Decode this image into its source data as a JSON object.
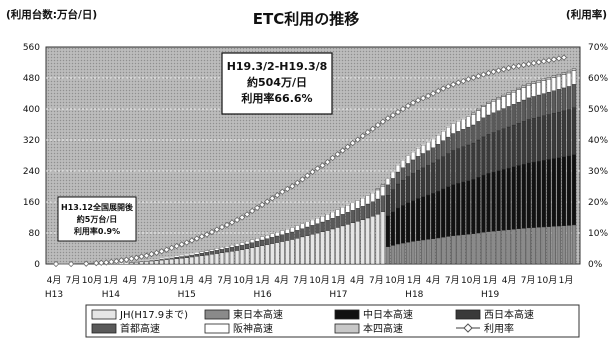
{
  "chart_data": {
    "type": "bar",
    "title": "ETC利用の推移",
    "ylabel_left": "(利用台数:万台/日)",
    "ylabel_right": "(利用率)",
    "y_left": {
      "min": 0,
      "max": 560,
      "ticks": [
        "560",
        "480",
        "400",
        "320",
        "240",
        "160",
        "80",
        "0"
      ]
    },
    "y_right": {
      "min": 0,
      "max": 70,
      "ticks": [
        "70%",
        "60%",
        "50%",
        "40%",
        "30%",
        "20%",
        "10%",
        "0%"
      ]
    },
    "x_month_labels": [
      "4月",
      "7月",
      "10月",
      "1月",
      "4月",
      "7月",
      "10月",
      "1月",
      "4月",
      "7月",
      "10月",
      "1月",
      "4月",
      "7月",
      "10月",
      "1月",
      "4月",
      "7月",
      "10月",
      "1月",
      "4月",
      "7月",
      "10月",
      "1月",
      "4月",
      "7月",
      "10月",
      "1月"
    ],
    "x_year_labels": [
      "H13",
      "H14",
      "H15",
      "H16",
      "H17",
      "H18",
      "H19"
    ],
    "x_year_label_index": [
      0,
      3,
      7,
      11,
      15,
      19,
      23
    ],
    "stack_series_names": [
      "JH(H17.9まで)",
      "東日本高速",
      "中日本高速",
      "西日本高速",
      "首都高速",
      "阪神高速",
      "本四高速"
    ],
    "line_series_name": "利用率",
    "totals": [
      0.02,
      0.03,
      0.05,
      0.1,
      0.2,
      0.3,
      0.5,
      0.7,
      1.0,
      1.4,
      1.9,
      2.5,
      3.3,
      4,
      5,
      6,
      7.2,
      8.5,
      10,
      11.5,
      13,
      15,
      17,
      19,
      21,
      23,
      25,
      27.5,
      30,
      32.5,
      35,
      38,
      41,
      44,
      47,
      50,
      53,
      56,
      60,
      64,
      68,
      72,
      76,
      80,
      84,
      88,
      92,
      96,
      101,
      106,
      111,
      116,
      121,
      126,
      131,
      137,
      143,
      149,
      155,
      161,
      167,
      173,
      180,
      187,
      195,
      205,
      222,
      240,
      258,
      270,
      282,
      292,
      302,
      310,
      318,
      326,
      336,
      346,
      356,
      366,
      372,
      378,
      384,
      390,
      400,
      410,
      418,
      424,
      430,
      436,
      442,
      448,
      454,
      460,
      466,
      470,
      474,
      478,
      482,
      486,
      490,
      494,
      498,
      504
    ],
    "rate_pct": [
      0,
      0,
      0,
      0,
      0.1,
      0.1,
      0.1,
      0.2,
      0.3,
      0.4,
      0.5,
      0.7,
      0.9,
      1.2,
      1.4,
      1.7,
      2.0,
      2.4,
      2.7,
      3.2,
      3.6,
      4.1,
      4.6,
      5.2,
      5.8,
      6.3,
      6.9,
      7.6,
      8.2,
      8.9,
      9.5,
      10.3,
      11.1,
      11.9,
      12.6,
      13.4,
      14.2,
      15.0,
      16.0,
      17.1,
      18.1,
      19.1,
      20.1,
      21.2,
      22.2,
      23.3,
      24.2,
      25.1,
      26.2,
      27.3,
      28.5,
      29.7,
      30.8,
      31.8,
      32.9,
      34.2,
      35.4,
      36.6,
      37.8,
      39.0,
      40.1,
      41.3,
      42.5,
      43.6,
      44.8,
      45.9,
      47.0,
      48.0,
      49.0,
      50.0,
      51.0,
      52.0,
      52.8,
      53.5,
      54.2,
      55.0,
      55.8,
      56.6,
      57.3,
      57.9,
      58.5,
      59.0,
      59.6,
      60.1,
      60.6,
      61.1,
      61.6,
      62.0,
      62.4,
      62.8,
      63.2,
      63.6,
      63.9,
      64.2,
      64.5,
      64.8,
      65.1,
      65.4,
      65.7,
      66.0,
      66.3,
      66.6
    ]
  },
  "annotation_main": {
    "line1": "H19.3/2-H19.3/8",
    "line2": "約504万/日",
    "line3": "利用率66.6%"
  },
  "annotation_small": {
    "line1": "H13.12全国展開後",
    "line2": "約5万台/日",
    "line3": "利用率0.9%"
  },
  "legend": {
    "jh": "JH(H17.9まで)",
    "higashi": "東日本高速",
    "naka": "中日本高速",
    "nishi": "西日本高速",
    "shuto": "首都高速",
    "hanshin": "阪神高速",
    "honshi": "本四高速",
    "rate": "利用率"
  }
}
